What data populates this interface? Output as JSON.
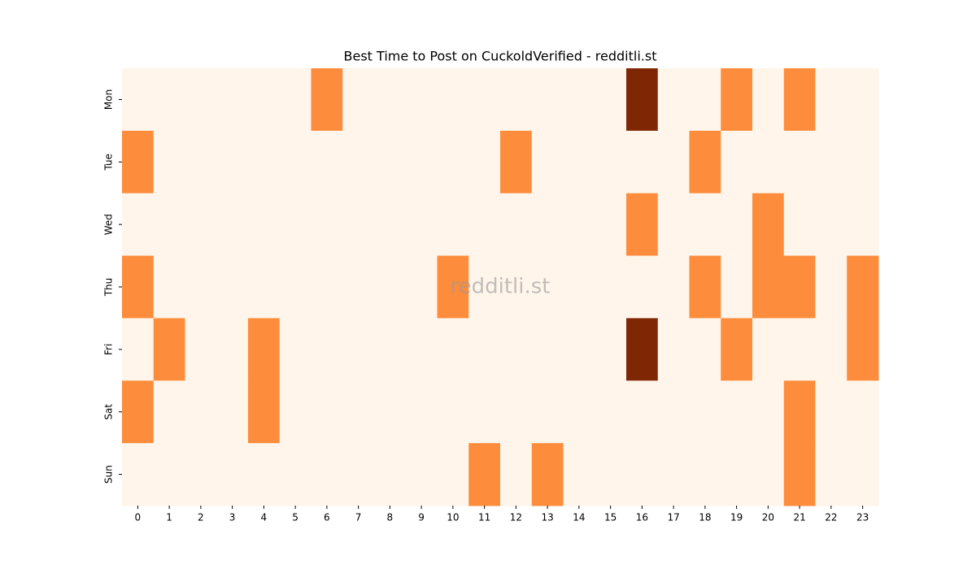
{
  "chart_data": {
    "type": "heatmap",
    "title": "Best Time to Post on CuckoldVerified - redditli.st",
    "watermark": "redditli.st",
    "x": [
      0,
      1,
      2,
      3,
      4,
      5,
      6,
      7,
      8,
      9,
      10,
      11,
      12,
      13,
      14,
      15,
      16,
      17,
      18,
      19,
      20,
      21,
      22,
      23
    ],
    "y": [
      "Mon",
      "Tue",
      "Wed",
      "Thu",
      "Fri",
      "Sat",
      "Sun"
    ],
    "values": [
      [
        0,
        0,
        0,
        0,
        0,
        0,
        1,
        0,
        0,
        0,
        0,
        0,
        0,
        0,
        0,
        0,
        2,
        0,
        0,
        1,
        0,
        1,
        0,
        0
      ],
      [
        1,
        0,
        0,
        0,
        0,
        0,
        0,
        0,
        0,
        0,
        0,
        0,
        1,
        0,
        0,
        0,
        0,
        0,
        1,
        0,
        0,
        0,
        0,
        0
      ],
      [
        0,
        0,
        0,
        0,
        0,
        0,
        0,
        0,
        0,
        0,
        0,
        0,
        0,
        0,
        0,
        0,
        1,
        0,
        0,
        0,
        1,
        0,
        0,
        0
      ],
      [
        1,
        0,
        0,
        0,
        0,
        0,
        0,
        0,
        0,
        0,
        1,
        0,
        0,
        0,
        0,
        0,
        0,
        0,
        1,
        0,
        1,
        1,
        0,
        1
      ],
      [
        0,
        1,
        0,
        0,
        1,
        0,
        0,
        0,
        0,
        0,
        0,
        0,
        0,
        0,
        0,
        0,
        2,
        0,
        0,
        1,
        0,
        0,
        0,
        1
      ],
      [
        1,
        0,
        0,
        0,
        1,
        0,
        0,
        0,
        0,
        0,
        0,
        0,
        0,
        0,
        0,
        0,
        0,
        0,
        0,
        0,
        0,
        1,
        0,
        0
      ],
      [
        0,
        0,
        0,
        0,
        0,
        0,
        0,
        0,
        0,
        0,
        0,
        1,
        0,
        1,
        0,
        0,
        0,
        0,
        0,
        0,
        0,
        1,
        0,
        0
      ]
    ],
    "zlim": [
      0,
      2
    ],
    "colors": [
      "#fff5eb",
      "#fd8d3c",
      "#7f2704"
    ]
  }
}
